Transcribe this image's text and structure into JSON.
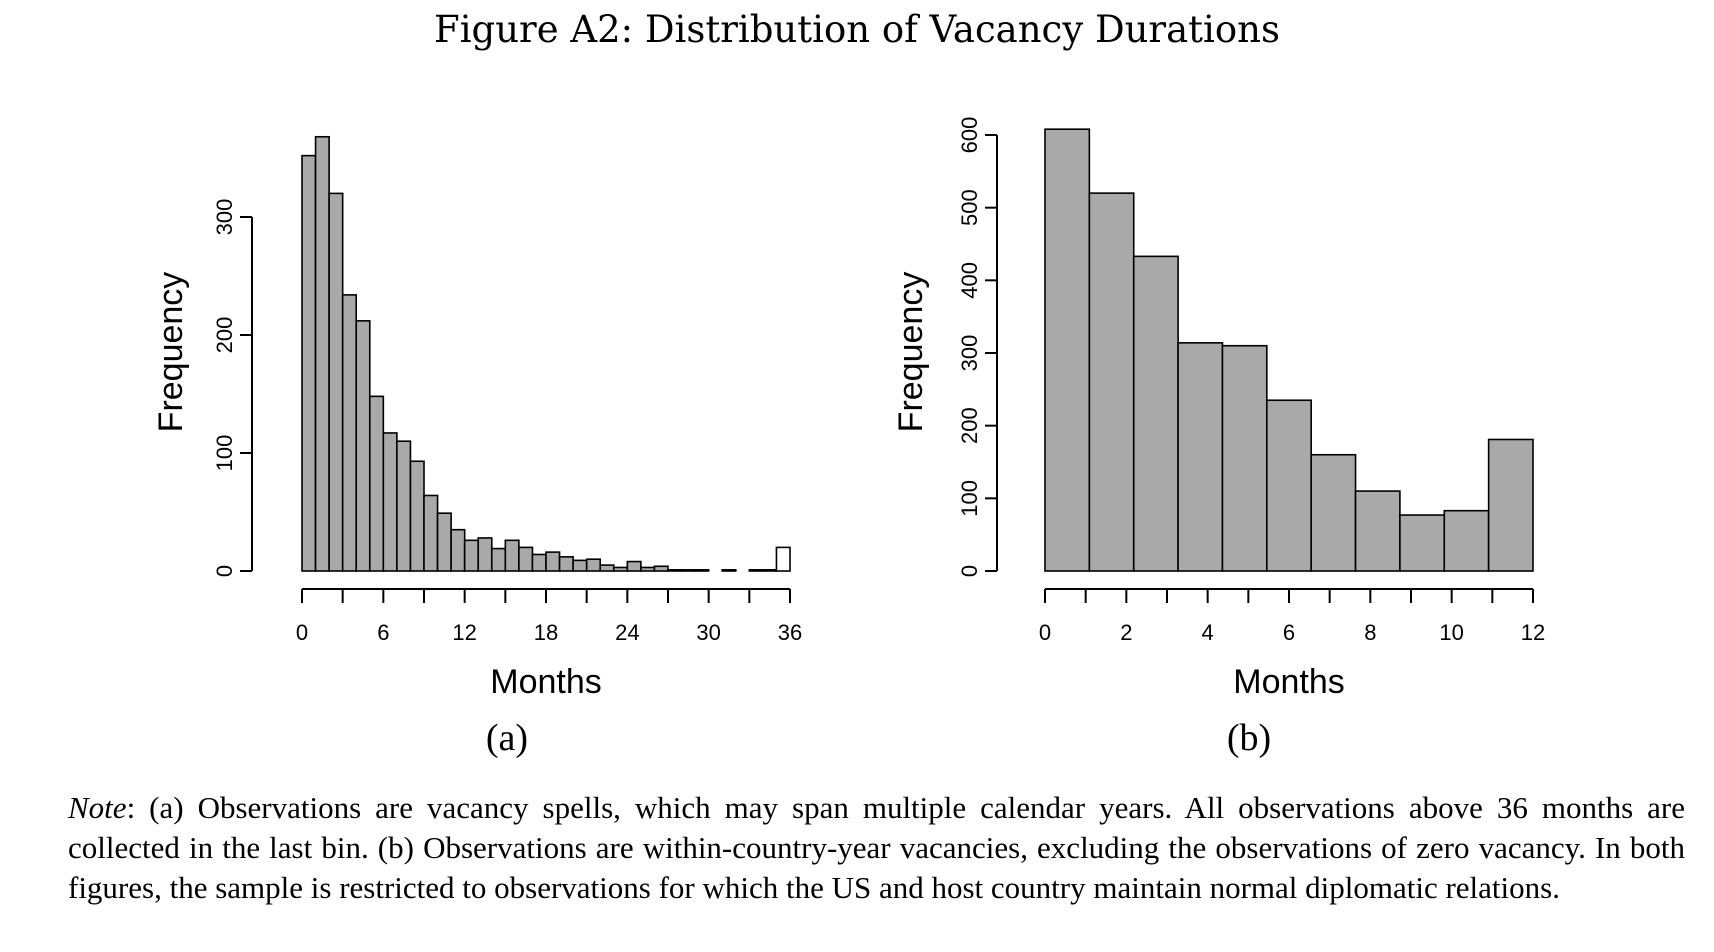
{
  "figure": {
    "title": "Figure A2: Distribution of Vacancy Durations",
    "note_lead": "Note",
    "note_text": ": (a) Observations are vacancy spells, which may span multiple calendar years. All observations above 36 months are collected in the last bin. (b) Observations are within-country-year vacancies, excluding the observations of zero vacancy. In both figures, the sample is restricted to observations for which the US and host country maintain normal diplomatic relations."
  },
  "colors": {
    "bar_fill": "#a9a9a9",
    "last_bin_fill": "#ffffff",
    "stroke": "#000000"
  },
  "chart_data": [
    {
      "type": "bar",
      "subplot_label": "(a)",
      "xlabel": "Months",
      "ylabel": "Frequency",
      "xlim": [
        0,
        36
      ],
      "ylim": [
        0,
        300
      ],
      "x_ticks": [
        0,
        6,
        12,
        18,
        24,
        30,
        36
      ],
      "y_ticks": [
        0,
        100,
        200,
        300
      ],
      "bin_width": 1,
      "bin_starts": [
        0,
        1,
        2,
        3,
        4,
        5,
        6,
        7,
        8,
        9,
        10,
        11,
        12,
        13,
        14,
        15,
        16,
        17,
        18,
        19,
        20,
        21,
        22,
        23,
        24,
        25,
        26,
        27,
        28,
        29,
        30,
        31,
        32,
        33,
        34,
        35
      ],
      "values": [
        352,
        368,
        320,
        234,
        212,
        148,
        117,
        110,
        93,
        64,
        49,
        35,
        26,
        28,
        19,
        26,
        20,
        14,
        16,
        12,
        9,
        10,
        5,
        3,
        8,
        3,
        4,
        1,
        1,
        1,
        0,
        1,
        0,
        1,
        1,
        20
      ],
      "last_bin_open": true
    },
    {
      "type": "bar",
      "subplot_label": "(b)",
      "xlabel": "Months",
      "ylabel": "Frequency",
      "xlim": [
        0,
        12
      ],
      "ylim": [
        0,
        600
      ],
      "x_ticks": [
        0,
        2,
        4,
        6,
        8,
        10,
        12
      ],
      "y_ticks": [
        0,
        100,
        200,
        300,
        400,
        500,
        600
      ],
      "bin_width": 1.0909,
      "bin_starts": [
        0,
        1.0909,
        2.1818,
        3.2727,
        4.3636,
        5.4545,
        6.5455,
        7.6364,
        8.7273,
        9.8182,
        10.9091
      ],
      "values": [
        608,
        520,
        433,
        314,
        310,
        235,
        160,
        110,
        77,
        83,
        181
      ],
      "last_bin_open": false
    }
  ]
}
